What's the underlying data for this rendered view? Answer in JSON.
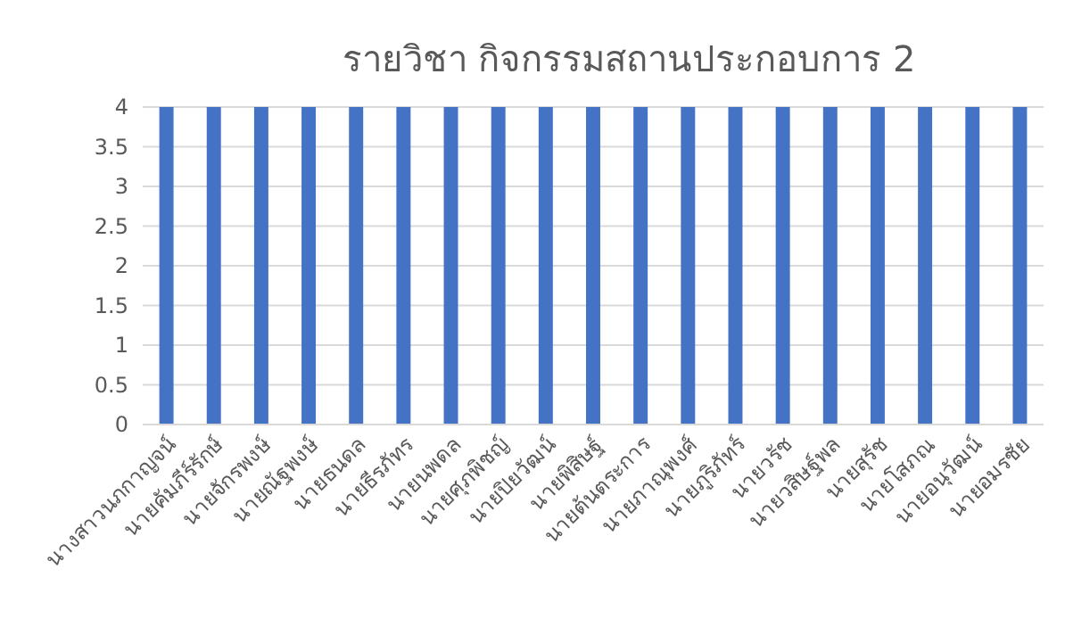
{
  "chart_data": {
    "type": "bar",
    "title": "รายวิชา กิจกรรมสถานประกอบการ 2",
    "categories": [
      "นางสาวนภกาญจน์",
      "นายคัมภีร์รักษ์",
      "นายจักรพงษ์",
      "นายณัฐพงษ์",
      "นายธนดล",
      "นายธีรภัทร",
      "นายนพดล",
      "นายศุภพิชญ์",
      "นายปิยวัฒน์",
      "นายพิสิษฐ์",
      "นายต้นตระการ",
      "นายภาณุพงศ์",
      "นายภูริภัทร์",
      "นายวรัช",
      "นายวสิษฐ์พล",
      "นายสุรัช",
      "นายโสภณ",
      "นายอนุวัฒน์",
      "นายอมรชัย"
    ],
    "values": [
      4,
      4,
      4,
      4,
      4,
      4,
      4,
      4,
      4,
      4,
      4,
      4,
      4,
      4,
      4,
      4,
      4,
      4,
      4
    ],
    "color": "#4472c4",
    "ylim": [
      0,
      4
    ],
    "yticks": [
      0,
      0.5,
      1,
      1.5,
      2,
      2.5,
      3,
      3.5,
      4
    ],
    "grid": "y"
  }
}
